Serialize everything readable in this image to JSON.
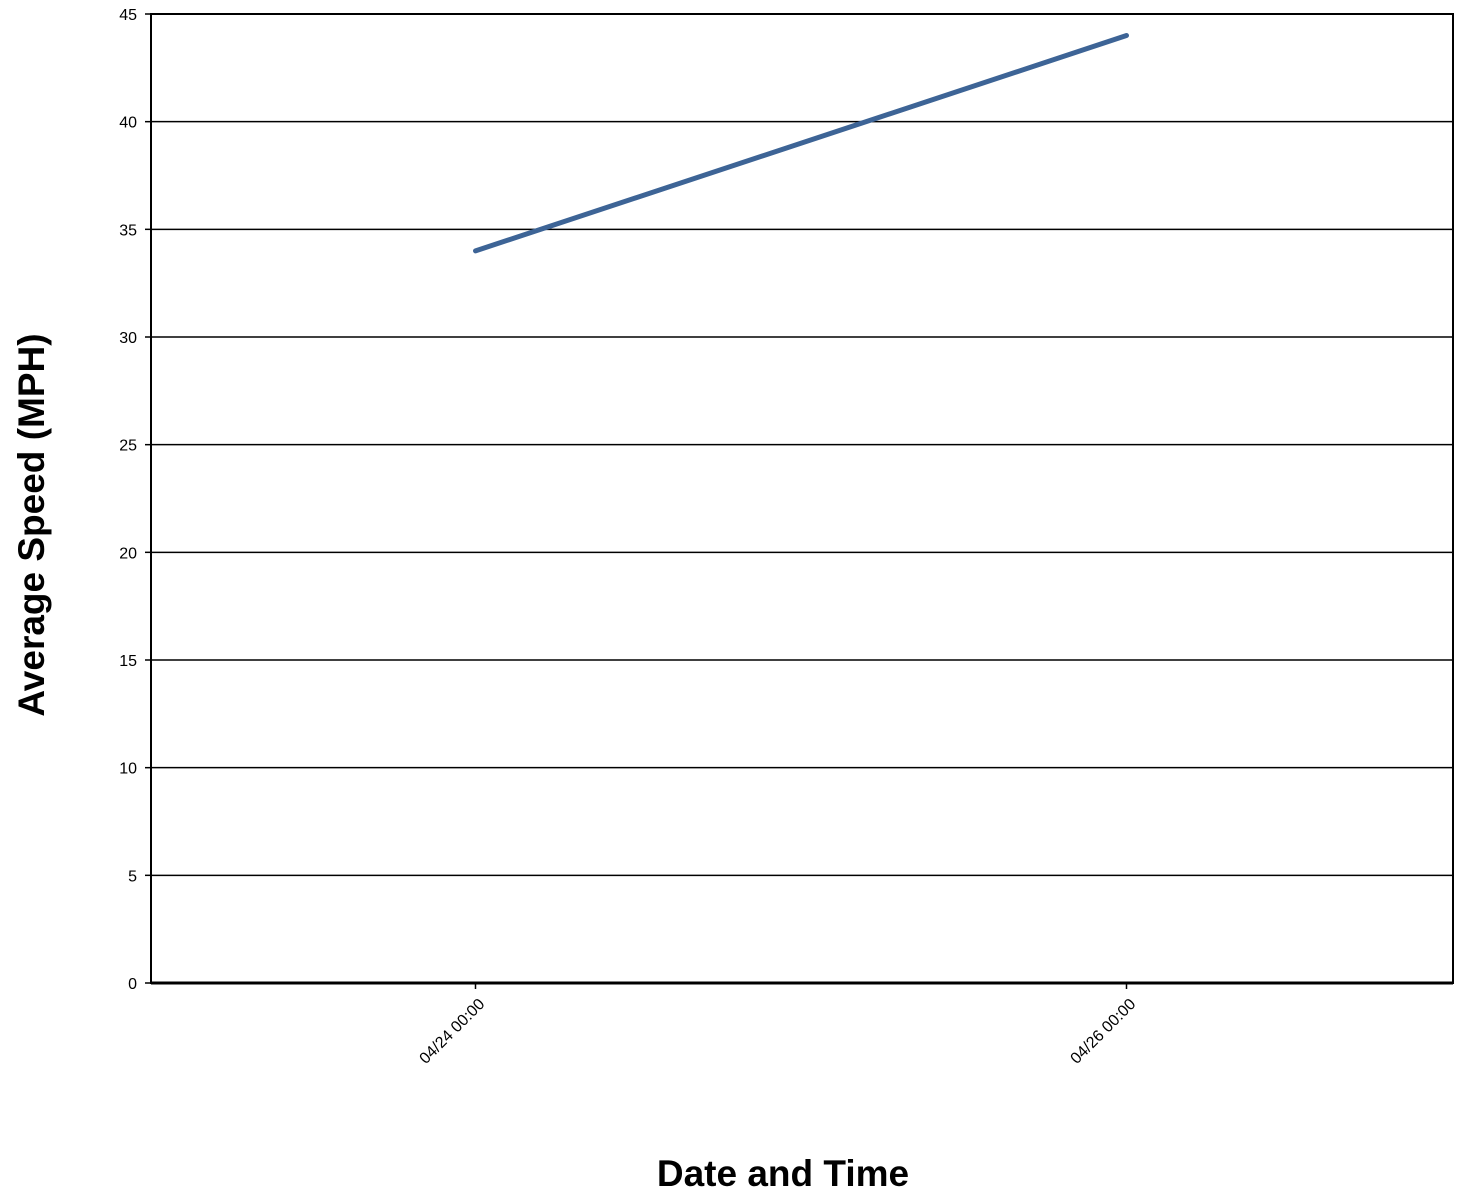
{
  "chart_data": {
    "type": "line",
    "title": "",
    "xlabel": "Date and Time",
    "ylabel": "Average Speed (MPH)",
    "x_tick_labels": [
      "04/24 00:00",
      "04/26 00:00"
    ],
    "x": [
      "04/24 00:00",
      "04/26 00:00"
    ],
    "series": [
      {
        "values": [
          34,
          44
        ],
        "color": "#3d6496"
      }
    ],
    "ylim": [
      0,
      45
    ],
    "y_ticks": [
      0,
      5,
      10,
      15,
      20,
      25,
      30,
      35,
      40,
      45
    ],
    "grid": "horizontal",
    "legend": "none"
  }
}
